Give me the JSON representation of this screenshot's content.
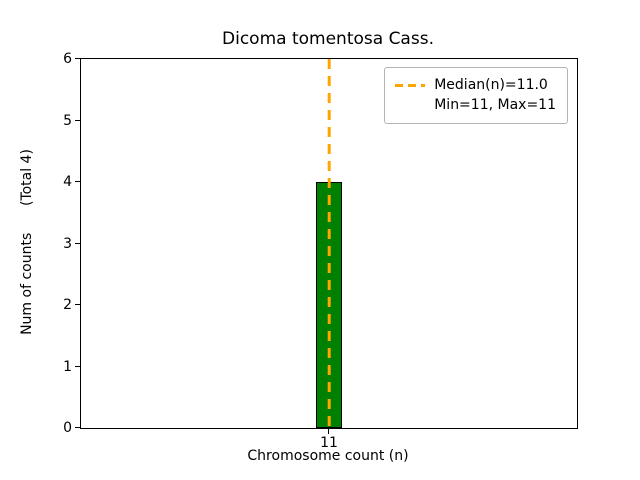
{
  "chart_data": {
    "type": "bar",
    "title": "Dicoma tomentosa Cass.",
    "xlabel": "Chromosome count (n)",
    "ylabel": "Num of counts      (Total 4)",
    "categories": [
      "11"
    ],
    "values": [
      4
    ],
    "ylim": [
      0,
      6
    ],
    "yticks": [
      0,
      1,
      2,
      3,
      4,
      5,
      6
    ],
    "bar_color": "#008000",
    "bar_edge_color": "#000000",
    "median_line": {
      "x": "11",
      "value": 11.0,
      "color": "#FFA500",
      "style": "dashed"
    },
    "grid": false,
    "legend_position": "upper right",
    "legend": [
      {
        "marker": "dashed-line",
        "color": "#FFA500",
        "label": "Median(n)=11.0"
      },
      {
        "marker": "none",
        "label": "Min=11, Max=11"
      }
    ]
  }
}
